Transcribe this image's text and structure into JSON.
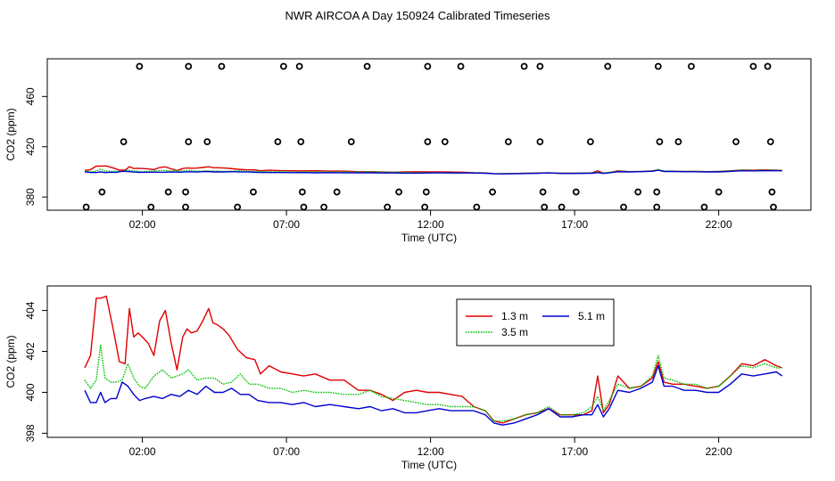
{
  "title": "NWR AIRCOA A  Day 150924  Calibrated Timeseries",
  "chart_data": [
    {
      "type": "scatter+line",
      "panel": "top",
      "xlabel": "Time (UTC)",
      "ylabel": "CO2 (ppm)",
      "xlim": [
        -1.3,
        25.2
      ],
      "ylim": [
        369.5,
        490
      ],
      "x_tick_values": [
        2,
        7,
        12,
        17,
        22
      ],
      "x_tick_labels": [
        "02:00",
        "07:00",
        "12:00",
        "17:00",
        "22:00"
      ],
      "y_tick_values": [
        380,
        420,
        460
      ],
      "y_tick_labels": [
        "380",
        "420",
        "460"
      ],
      "outlier_points": [
        {
          "x": 1.9,
          "y": 484
        },
        {
          "x": 3.6,
          "y": 484
        },
        {
          "x": 4.75,
          "y": 484
        },
        {
          "x": 6.9,
          "y": 484
        },
        {
          "x": 7.45,
          "y": 484
        },
        {
          "x": 9.8,
          "y": 484
        },
        {
          "x": 11.9,
          "y": 484
        },
        {
          "x": 13.05,
          "y": 484
        },
        {
          "x": 15.25,
          "y": 484
        },
        {
          "x": 15.8,
          "y": 484
        },
        {
          "x": 18.15,
          "y": 484
        },
        {
          "x": 19.9,
          "y": 484
        },
        {
          "x": 21.05,
          "y": 484
        },
        {
          "x": 23.2,
          "y": 484
        },
        {
          "x": 23.7,
          "y": 484
        },
        {
          "x": 1.35,
          "y": 424
        },
        {
          "x": 3.6,
          "y": 424
        },
        {
          "x": 4.25,
          "y": 424
        },
        {
          "x": 6.7,
          "y": 424
        },
        {
          "x": 7.5,
          "y": 424
        },
        {
          "x": 9.25,
          "y": 424
        },
        {
          "x": 11.9,
          "y": 424
        },
        {
          "x": 12.5,
          "y": 424
        },
        {
          "x": 14.7,
          "y": 424
        },
        {
          "x": 15.8,
          "y": 424
        },
        {
          "x": 17.55,
          "y": 424
        },
        {
          "x": 19.95,
          "y": 424
        },
        {
          "x": 20.6,
          "y": 424
        },
        {
          "x": 22.6,
          "y": 424
        },
        {
          "x": 23.8,
          "y": 424
        },
        {
          "x": 0.6,
          "y": 384
        },
        {
          "x": 2.9,
          "y": 384
        },
        {
          "x": 3.5,
          "y": 384
        },
        {
          "x": 5.85,
          "y": 384
        },
        {
          "x": 7.55,
          "y": 384
        },
        {
          "x": 8.75,
          "y": 384
        },
        {
          "x": 10.9,
          "y": 384
        },
        {
          "x": 11.85,
          "y": 384
        },
        {
          "x": 14.15,
          "y": 384
        },
        {
          "x": 15.9,
          "y": 384
        },
        {
          "x": 17.05,
          "y": 384
        },
        {
          "x": 19.2,
          "y": 384
        },
        {
          "x": 19.85,
          "y": 384
        },
        {
          "x": 22.0,
          "y": 384
        },
        {
          "x": 23.85,
          "y": 384
        },
        {
          "x": 0.05,
          "y": 372
        },
        {
          "x": 2.3,
          "y": 372
        },
        {
          "x": 3.5,
          "y": 372
        },
        {
          "x": 5.3,
          "y": 372
        },
        {
          "x": 7.6,
          "y": 372
        },
        {
          "x": 8.3,
          "y": 372
        },
        {
          "x": 10.5,
          "y": 372
        },
        {
          "x": 11.8,
          "y": 372
        },
        {
          "x": 13.6,
          "y": 372
        },
        {
          "x": 15.95,
          "y": 372
        },
        {
          "x": 16.55,
          "y": 372
        },
        {
          "x": 18.7,
          "y": 372
        },
        {
          "x": 19.85,
          "y": 372
        },
        {
          "x": 21.5,
          "y": 372
        },
        {
          "x": 23.9,
          "y": 372
        }
      ]
    },
    {
      "type": "line",
      "panel": "bottom",
      "xlabel": "Time (UTC)",
      "ylabel": "CO2 (ppm)",
      "xlim": [
        -1.3,
        25.2
      ],
      "ylim": [
        397.8,
        405.2
      ],
      "x_tick_values": [
        2,
        7,
        12,
        17,
        22
      ],
      "x_tick_labels": [
        "02:00",
        "07:00",
        "12:00",
        "17:00",
        "22:00"
      ],
      "y_tick_values": [
        398,
        400,
        402,
        404
      ],
      "y_tick_labels": [
        "398",
        "400",
        "402",
        "404"
      ],
      "legend_position": "top-center",
      "series": [
        {
          "name": "1.3 m",
          "color": "#e00000",
          "style": "solid",
          "x": [
            0.0,
            0.2,
            0.4,
            0.55,
            0.75,
            1.0,
            1.2,
            1.4,
            1.55,
            1.7,
            1.85,
            2.0,
            2.2,
            2.4,
            2.6,
            2.8,
            3.0,
            3.2,
            3.4,
            3.55,
            3.7,
            3.9,
            4.1,
            4.3,
            4.45,
            4.6,
            4.8,
            5.0,
            5.3,
            5.6,
            5.9,
            6.1,
            6.4,
            6.8,
            7.2,
            7.6,
            8.0,
            8.5,
            9.0,
            9.5,
            9.9,
            10.3,
            10.7,
            11.1,
            11.5,
            11.9,
            12.3,
            12.7,
            13.1,
            13.5,
            13.9,
            14.2,
            14.5,
            14.9,
            15.3,
            15.7,
            16.1,
            16.5,
            16.9,
            17.3,
            17.6,
            17.8,
            18.0,
            18.2,
            18.5,
            18.9,
            19.3,
            19.7,
            19.9,
            20.1,
            20.4,
            20.8,
            21.2,
            21.6,
            22.0,
            22.4,
            22.8,
            23.2,
            23.6,
            24.0,
            24.2
          ],
          "y": [
            401.2,
            401.8,
            404.6,
            404.6,
            404.7,
            403.0,
            401.5,
            401.4,
            404.1,
            402.7,
            402.9,
            402.7,
            402.4,
            401.8,
            403.5,
            404.0,
            402.4,
            401.1,
            402.7,
            403.1,
            402.9,
            403.0,
            403.5,
            404.1,
            403.4,
            403.3,
            403.1,
            402.8,
            402.1,
            401.7,
            401.6,
            400.9,
            401.3,
            401.0,
            400.9,
            400.8,
            400.9,
            400.6,
            400.6,
            400.1,
            400.1,
            399.9,
            399.6,
            400.0,
            400.1,
            400.0,
            400.0,
            399.9,
            399.8,
            399.3,
            399.1,
            398.6,
            398.5,
            398.7,
            398.9,
            399.0,
            399.2,
            398.9,
            398.9,
            398.9,
            399.1,
            400.8,
            399.0,
            399.4,
            400.8,
            400.2,
            400.3,
            400.7,
            401.5,
            400.5,
            400.4,
            400.4,
            400.3,
            400.2,
            400.3,
            400.8,
            401.4,
            401.3,
            401.6,
            401.3,
            401.2
          ]
        },
        {
          "name": "3.5 m",
          "color": "#00c000",
          "style": "dotted",
          "x": [
            0.0,
            0.2,
            0.4,
            0.55,
            0.7,
            0.9,
            1.1,
            1.3,
            1.5,
            1.7,
            1.9,
            2.1,
            2.4,
            2.7,
            3.0,
            3.2,
            3.4,
            3.6,
            3.9,
            4.2,
            4.5,
            4.8,
            5.1,
            5.4,
            5.7,
            6.0,
            6.4,
            6.8,
            7.2,
            7.6,
            8.0,
            8.5,
            9.0,
            9.5,
            9.9,
            10.3,
            10.7,
            11.1,
            11.5,
            11.9,
            12.3,
            12.7,
            13.1,
            13.5,
            13.9,
            14.2,
            14.5,
            14.9,
            15.3,
            15.7,
            16.1,
            16.5,
            16.9,
            17.3,
            17.6,
            17.8,
            18.0,
            18.2,
            18.5,
            18.9,
            19.3,
            19.7,
            19.9,
            20.1,
            20.4,
            20.8,
            21.2,
            21.6,
            22.0,
            22.4,
            22.8,
            23.2,
            23.6,
            24.0,
            24.2
          ],
          "y": [
            400.6,
            400.2,
            400.6,
            402.3,
            400.7,
            400.5,
            400.5,
            400.6,
            401.4,
            400.7,
            400.3,
            400.2,
            400.8,
            401.1,
            400.7,
            400.8,
            400.9,
            401.1,
            400.6,
            400.7,
            400.7,
            400.4,
            400.5,
            400.9,
            400.4,
            400.4,
            400.2,
            400.2,
            400.0,
            400.1,
            400.0,
            400.0,
            399.9,
            399.9,
            400.1,
            399.8,
            399.7,
            399.6,
            399.5,
            399.4,
            399.4,
            399.3,
            399.3,
            399.3,
            399.1,
            398.6,
            398.6,
            398.7,
            398.9,
            399.0,
            399.3,
            398.9,
            398.9,
            399.0,
            399.3,
            399.8,
            399.1,
            399.6,
            400.4,
            400.2,
            400.3,
            400.8,
            401.8,
            400.7,
            400.6,
            400.4,
            400.4,
            400.2,
            400.3,
            400.8,
            401.3,
            401.2,
            401.4,
            401.2,
            401.2
          ]
        },
        {
          "name": "5.1 m",
          "color": "#0000d0",
          "style": "solid",
          "x": [
            0.0,
            0.2,
            0.4,
            0.55,
            0.7,
            0.9,
            1.1,
            1.3,
            1.5,
            1.7,
            1.9,
            2.1,
            2.4,
            2.7,
            3.0,
            3.3,
            3.6,
            3.9,
            4.2,
            4.5,
            4.8,
            5.1,
            5.4,
            5.7,
            6.0,
            6.4,
            6.8,
            7.2,
            7.6,
            8.0,
            8.5,
            9.0,
            9.5,
            9.9,
            10.3,
            10.7,
            11.1,
            11.5,
            11.9,
            12.3,
            12.7,
            13.1,
            13.5,
            13.9,
            14.2,
            14.5,
            14.9,
            15.3,
            15.7,
            16.1,
            16.5,
            16.9,
            17.3,
            17.6,
            17.8,
            18.0,
            18.2,
            18.5,
            18.9,
            19.3,
            19.7,
            19.9,
            20.1,
            20.4,
            20.8,
            21.2,
            21.6,
            22.0,
            22.4,
            22.8,
            23.2,
            23.6,
            24.0,
            24.2
          ],
          "y": [
            400.1,
            399.5,
            399.5,
            400.0,
            399.5,
            399.7,
            399.7,
            400.5,
            400.3,
            399.9,
            399.6,
            399.7,
            399.8,
            399.7,
            399.9,
            399.8,
            400.1,
            399.9,
            400.3,
            400.0,
            400.0,
            400.2,
            399.9,
            399.9,
            399.6,
            399.5,
            399.5,
            399.4,
            399.5,
            399.3,
            399.4,
            399.3,
            399.2,
            399.3,
            399.1,
            399.2,
            399.0,
            399.0,
            399.1,
            399.2,
            399.1,
            399.1,
            399.1,
            398.9,
            398.5,
            398.4,
            398.5,
            398.7,
            398.9,
            399.2,
            398.8,
            398.8,
            398.9,
            398.9,
            399.4,
            398.8,
            399.2,
            400.1,
            400.0,
            400.2,
            400.5,
            401.3,
            400.3,
            400.3,
            400.1,
            400.1,
            400.0,
            400.0,
            400.4,
            400.9,
            400.8,
            400.9,
            401.0,
            400.8
          ]
        }
      ]
    }
  ]
}
